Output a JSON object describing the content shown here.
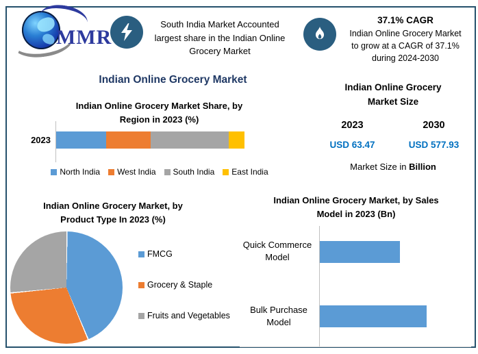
{
  "palette": {
    "blue": "#5B9BD5",
    "orange": "#ED7D31",
    "gray": "#A5A5A5",
    "yellow": "#FFC000",
    "navy_title": "#1F3864",
    "value_blue": "#0070C0",
    "icon_circle_bg": "#2A5E80",
    "frame_border": "#24506B"
  },
  "logo": {
    "text": "MMR"
  },
  "header": {
    "highlight": {
      "line1": "South India Market Accounted",
      "line2": "largest share in the Indian Online",
      "line3": "Grocery Market"
    },
    "cagr": {
      "title": "37.1% CAGR",
      "line1": "Indian Online Grocery Market",
      "line2": "to grow at a CAGR of 37.1%",
      "line3": "during 2024-2030"
    }
  },
  "main_title": "Indian Online Grocery Market",
  "region_chart": {
    "title_line1": "Indian Online Grocery Market Share, by",
    "title_line2": "Region in 2023 (%)",
    "category_label": "2023"
  },
  "market_size": {
    "title_line1": "Indian Online Grocery",
    "title_line2": "Market Size",
    "year_start": "2023",
    "year_end": "2030",
    "value_start": "USD 63.47",
    "value_end": "USD 577.93",
    "unit_prefix": "Market Size in ",
    "unit_bold": "Billion"
  },
  "product_chart": {
    "title_line1": "Indian Online Grocery Market, by",
    "title_line2": "Product Type In 2023 (%)"
  },
  "sales_chart": {
    "title_line1": "Indian Online Grocery Market, by Sales",
    "title_line2": "Model in 2023 (Bn)"
  },
  "chart_data": [
    {
      "type": "bar",
      "subtype": "stacked-horizontal",
      "title": "Indian Online Grocery Market Share, by Region in 2023 (%)",
      "categories": [
        "2023"
      ],
      "series": [
        {
          "name": "North India",
          "values": [
            26.5
          ],
          "color": "#5B9BD5"
        },
        {
          "name": "West India",
          "values": [
            23.5
          ],
          "color": "#ED7D31"
        },
        {
          "name": "South India",
          "values": [
            41.5
          ],
          "color": "#A5A5A5"
        },
        {
          "name": "East India",
          "values": [
            8.5
          ],
          "color": "#FFC000"
        }
      ],
      "xlim": [
        0,
        100
      ],
      "legend_position": "bottom",
      "grid": false
    },
    {
      "type": "pie",
      "title": "Indian Online Grocery Market, by Product Type In 2023 (%)",
      "labels": [
        "FMCG",
        "Grocery & Staple",
        "Fruits and Vegetables"
      ],
      "values": [
        43.5,
        29.8,
        26.7
      ],
      "colors": [
        "#5B9BD5",
        "#ED7D31",
        "#A5A5A5"
      ],
      "start_angle_deg": 0,
      "legend_position": "right"
    },
    {
      "type": "bar",
      "subtype": "horizontal",
      "title": "Indian Online Grocery Market, by Sales Model in 2023 (Bn)",
      "categories": [
        "Quick Commerce Model",
        "Bulk Purchase Model"
      ],
      "values": [
        0.75,
        1.0
      ],
      "xlim": [
        0,
        1.43
      ],
      "bar_color": "#5B9BD5",
      "grid": false,
      "value_labels_shown": false
    }
  ]
}
